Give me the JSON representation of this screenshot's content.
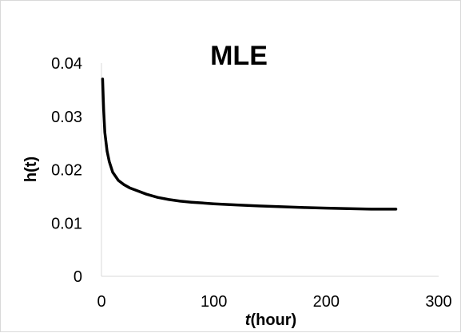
{
  "chart_data": {
    "type": "line",
    "title": "MLE",
    "xlabel_italic": "t",
    "xlabel_rest": "(hour)",
    "ylabel": "h(t)",
    "xlim": [
      0,
      300
    ],
    "ylim": [
      0,
      0.04
    ],
    "x_ticks": [
      0,
      100,
      200,
      300
    ],
    "y_ticks": [
      0,
      0.01,
      0.02,
      0.03,
      0.04
    ],
    "x_tick_labels": [
      "0",
      "100",
      "200",
      "300"
    ],
    "y_tick_labels": [
      "0",
      "0.01",
      "0.02",
      "0.03",
      "0.04"
    ],
    "grid": false,
    "legend": "none",
    "line_color": "#000000",
    "series": [
      {
        "x": [
          1,
          2,
          3,
          5,
          7,
          10,
          15,
          20,
          25,
          30,
          40,
          50,
          60,
          70,
          80,
          100,
          120,
          140,
          160,
          180,
          200,
          220,
          240,
          262
        ],
        "values": [
          0.037,
          0.031,
          0.027,
          0.0235,
          0.0215,
          0.0195,
          0.018,
          0.0172,
          0.0166,
          0.0162,
          0.0154,
          0.0148,
          0.0144,
          0.0141,
          0.0139,
          0.0136,
          0.0134,
          0.0132,
          0.01305,
          0.0129,
          0.0128,
          0.0127,
          0.0126,
          0.0126
        ]
      }
    ]
  }
}
